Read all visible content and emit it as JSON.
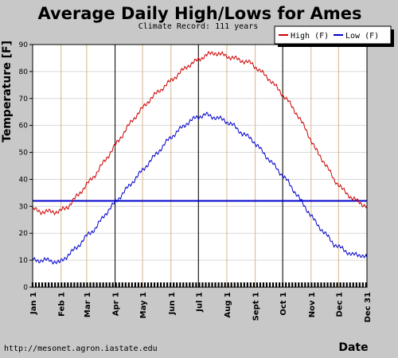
{
  "chart_data": {
    "type": "line",
    "title": "Average Daily High/Lows for Ames",
    "subtitle": "Climate Record: 111 years",
    "xlabel": "Date",
    "ylabel": "Temperature [F]",
    "source": "http://mesonet.agron.iastate.edu",
    "ylim": [
      0,
      90
    ],
    "yticks": [
      0,
      10,
      20,
      30,
      40,
      50,
      60,
      70,
      80,
      90
    ],
    "xlim": [
      1,
      366
    ],
    "x_tick_labels": [
      "Jan 1",
      "Feb 1",
      "Mar 1",
      "Apr 1",
      "May 1",
      "Jun 1",
      "Jul 1",
      "Aug 1",
      "Sept 1",
      "Oct 1",
      "Nov 1",
      "Dec 1",
      "Dec 31"
    ],
    "x_tick_days": [
      1,
      32,
      60,
      91,
      121,
      152,
      182,
      213,
      244,
      274,
      305,
      335,
      366
    ],
    "quarter_lines_days": [
      91,
      182,
      274
    ],
    "reference_line": {
      "value": 32,
      "color": "#0000cc"
    },
    "grid": true,
    "legend_position": "top-right",
    "series": [
      {
        "name": "High (F)",
        "color": "#cc0000",
        "x": [
          1,
          10,
          20,
          30,
          40,
          50,
          60,
          70,
          80,
          90,
          100,
          110,
          120,
          130,
          140,
          150,
          160,
          170,
          180,
          190,
          200,
          210,
          220,
          230,
          240,
          250,
          260,
          270,
          280,
          290,
          300,
          310,
          320,
          330,
          340,
          350,
          360,
          366
        ],
        "values": [
          29,
          28,
          28,
          28,
          30,
          34,
          38,
          42,
          47,
          52,
          57,
          62,
          66,
          70,
          73,
          76,
          79,
          82,
          84,
          86,
          87,
          86,
          85,
          84,
          83,
          80,
          77,
          73,
          69,
          64,
          58,
          51,
          46,
          40,
          36,
          33,
          31,
          30
        ]
      },
      {
        "name": "Low (F)",
        "color": "#0000cc",
        "x": [
          1,
          10,
          20,
          30,
          40,
          50,
          60,
          70,
          80,
          90,
          100,
          110,
          120,
          130,
          140,
          150,
          160,
          170,
          180,
          190,
          200,
          210,
          220,
          230,
          240,
          250,
          260,
          270,
          280,
          290,
          300,
          310,
          320,
          330,
          340,
          350,
          360,
          366
        ],
        "values": [
          10,
          10,
          10,
          9,
          12,
          15,
          19,
          22,
          27,
          31,
          35,
          39,
          43,
          47,
          51,
          55,
          58,
          61,
          63,
          64,
          63,
          62,
          60,
          57,
          55,
          51,
          47,
          43,
          39,
          34,
          29,
          24,
          20,
          16,
          14,
          12,
          12,
          11
        ]
      }
    ]
  }
}
